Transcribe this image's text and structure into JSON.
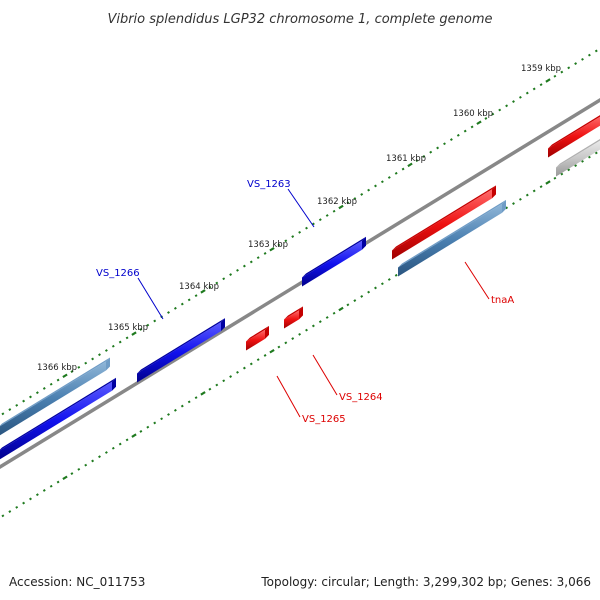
{
  "title": "Vibrio splendidus LGP32 chromosome 1, complete genome",
  "footer": {
    "accession": "Accession: NC_011753",
    "summary": "Topology: circular; Length: 3,299,302 bp; Genes: 3,066"
  },
  "ruler": {
    "labels": [
      "1359 kbp",
      "1360 kbp",
      "1361 kbp",
      "1362 kbp",
      "1363 kbp",
      "1364 kbp",
      "1365 kbp",
      "1366 kbp"
    ]
  },
  "gene_labels": [
    {
      "name": "VS_1263",
      "color": "#0000cc"
    },
    {
      "name": "VS_1266",
      "color": "#0000cc"
    },
    {
      "name": "tnaA",
      "color": "#dd0000"
    },
    {
      "name": "VS_1264",
      "color": "#dd0000"
    },
    {
      "name": "VS_1265",
      "color": "#dd0000"
    }
  ],
  "colors": {
    "forward_cds": "#1111ee",
    "reverse_cds": "#ee1111",
    "gene": "#4a7fb0",
    "other_feature": "#c8c8c8",
    "backbone": "#888888",
    "tick": "#1f7a1f"
  }
}
